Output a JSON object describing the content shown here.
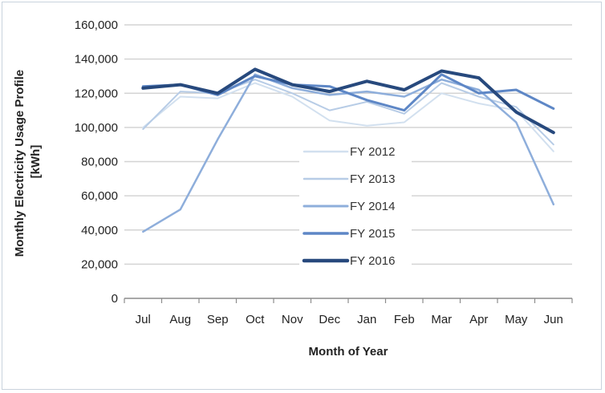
{
  "chart_data": {
    "type": "line",
    "categories": [
      "Jul",
      "Aug",
      "Sep",
      "Oct",
      "Nov",
      "Dec",
      "Jan",
      "Feb",
      "Mar",
      "Apr",
      "May",
      "Jun"
    ],
    "series": [
      {
        "name": "FY 2012",
        "color": "#d2e0ef",
        "width": 2,
        "values": [
          100000,
          118000,
          117000,
          126000,
          118000,
          104000,
          101000,
          103000,
          120000,
          114000,
          110000,
          86000
        ]
      },
      {
        "name": "FY 2013",
        "color": "#b7cce6",
        "width": 2,
        "values": [
          99000,
          121000,
          120000,
          128000,
          120000,
          110000,
          115000,
          108000,
          126000,
          118000,
          112000,
          90000
        ]
      },
      {
        "name": "FY 2014",
        "color": "#8eaedb",
        "width": 2.5,
        "values": [
          39000,
          52000,
          93000,
          131000,
          123000,
          119000,
          121000,
          118000,
          128000,
          122000,
          103000,
          55000
        ]
      },
      {
        "name": "FY 2015",
        "color": "#5e87c6",
        "width": 3,
        "values": [
          124000,
          125000,
          119000,
          130000,
          125000,
          124000,
          116000,
          110000,
          131000,
          120000,
          122000,
          111000
        ]
      },
      {
        "name": "FY 2016",
        "color": "#27497d",
        "width": 4,
        "values": [
          123000,
          125000,
          120000,
          134000,
          125000,
          121000,
          127000,
          122000,
          133000,
          129000,
          109000,
          97000
        ]
      }
    ],
    "xlabel": "Month of Year",
    "ylabel_lines": [
      "Monthly Electricity Usage Profile",
      "[kWh]"
    ],
    "ylim": [
      0,
      160000
    ],
    "ytick_step": 20000,
    "ytick_labels": [
      "0",
      "20,000",
      "40,000",
      "60,000",
      "80,000",
      "100,000",
      "120,000",
      "140,000",
      "160,000"
    ],
    "grid": "horizontal",
    "legend_position": "center"
  }
}
